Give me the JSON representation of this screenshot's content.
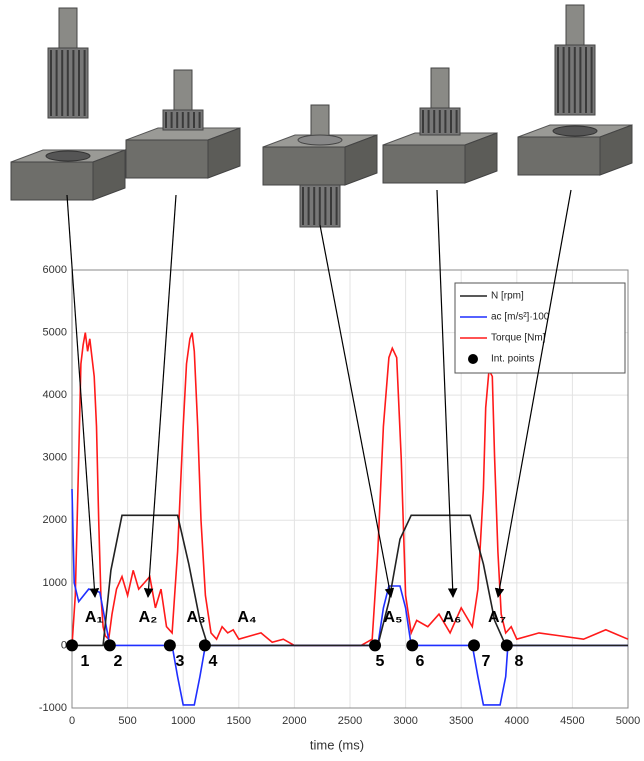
{
  "chart_data": {
    "type": "line",
    "x_label": "time (ms)",
    "xlim": [
      0,
      5000
    ],
    "xticks": [
      0,
      500,
      1000,
      1500,
      2000,
      2500,
      3000,
      3500,
      4000,
      4500,
      5000
    ],
    "ylim": [
      -1000,
      6000
    ],
    "yticks": [
      -1000,
      0,
      1000,
      2000,
      3000,
      4000,
      5000,
      6000
    ],
    "grid": true,
    "legend": "upper right",
    "series": [
      {
        "name": "N [rpm]",
        "color": "#222222",
        "x": [
          0,
          280,
          350,
          450,
          950,
          1050,
          1150,
          1220,
          2750,
          2850,
          2950,
          3050,
          3580,
          3700,
          3800,
          3900,
          5000
        ],
        "values": [
          0,
          0,
          1200,
          2080,
          2080,
          1300,
          400,
          0,
          0,
          700,
          1700,
          2080,
          2080,
          1300,
          400,
          0,
          0
        ]
      },
      {
        "name": "ac [m/s²]·100",
        "color": "#1f2fff",
        "x": [
          0,
          20,
          60,
          150,
          250,
          340,
          900,
          950,
          1000,
          1100,
          1150,
          1200,
          2750,
          2800,
          2850,
          2950,
          3000,
          3050,
          3600,
          3650,
          3700,
          3850,
          3900,
          3920,
          5000
        ],
        "values": [
          2500,
          1000,
          700,
          900,
          850,
          0,
          0,
          -500,
          -950,
          -950,
          -500,
          0,
          0,
          600,
          950,
          950,
          600,
          0,
          0,
          -500,
          -950,
          -950,
          -500,
          0,
          0
        ]
      },
      {
        "name": "Torque [Nm]",
        "color": "#ff1a1a",
        "x": [
          0,
          30,
          60,
          80,
          100,
          120,
          140,
          160,
          180,
          200,
          220,
          240,
          260,
          280,
          300,
          330,
          360,
          400,
          450,
          500,
          550,
          600,
          650,
          700,
          750,
          800,
          850,
          900,
          950,
          1000,
          1030,
          1060,
          1080,
          1100,
          1130,
          1160,
          1200,
          1250,
          1300,
          1350,
          1400,
          1450,
          1500,
          1600,
          1700,
          1800,
          1900,
          2000,
          2200,
          2400,
          2600,
          2700,
          2750,
          2800,
          2850,
          2880,
          2920,
          2960,
          3000,
          3050,
          3100,
          3200,
          3300,
          3400,
          3500,
          3600,
          3650,
          3700,
          3720,
          3750,
          3780,
          3800,
          3830,
          3860,
          3900,
          3950,
          4000,
          4200,
          4400,
          4600,
          4800,
          5000
        ],
        "values": [
          0,
          800,
          3000,
          4500,
          4800,
          5000,
          4700,
          4900,
          4600,
          4300,
          3500,
          2000,
          800,
          300,
          150,
          100,
          500,
          900,
          1100,
          800,
          1200,
          900,
          1000,
          1100,
          600,
          900,
          300,
          200,
          1500,
          3500,
          4500,
          4900,
          5000,
          4700,
          3500,
          2000,
          800,
          200,
          100,
          300,
          200,
          250,
          100,
          150,
          200,
          50,
          100,
          0,
          0,
          0,
          0,
          100,
          1500,
          3500,
          4600,
          4750,
          4600,
          3000,
          800,
          200,
          400,
          300,
          500,
          200,
          600,
          300,
          900,
          2500,
          3800,
          4400,
          4300,
          3000,
          1500,
          500,
          200,
          300,
          100,
          200,
          150,
          100,
          250,
          100
        ]
      },
      {
        "name": "Int. points",
        "color": "#000000",
        "marker": "circle",
        "x": [
          0,
          340,
          880,
          1195,
          2725,
          3060,
          3615,
          3910
        ],
        "values": [
          0,
          0,
          0,
          0,
          0,
          0,
          0,
          0
        ],
        "labels": [
          "1",
          "2",
          "3",
          "4",
          "5",
          "6",
          "7",
          "8"
        ]
      }
    ],
    "annotations": [
      "A₁",
      "A₂",
      "A₃",
      "A₄",
      "A₅",
      "A₆",
      "A₇"
    ]
  }
}
